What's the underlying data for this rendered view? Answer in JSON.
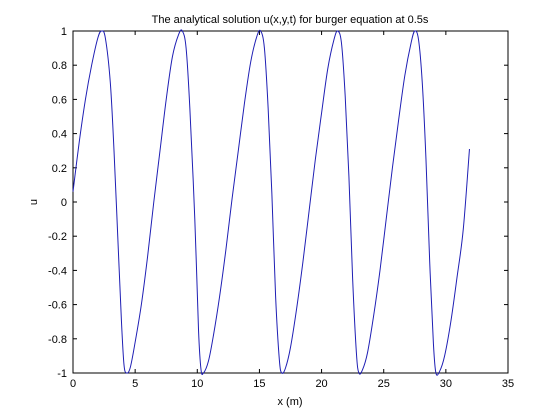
{
  "chart_data": {
    "type": "line",
    "title": "The analytical solution u(x,y,t) for burger equation at 0.5s",
    "xlabel": "x (m)",
    "ylabel": "u",
    "xlim": [
      0,
      35
    ],
    "ylim": [
      -1,
      1
    ],
    "xticks": [
      0,
      5,
      10,
      15,
      20,
      25,
      30,
      35
    ],
    "yticks": [
      -1,
      -0.8,
      -0.6,
      -0.4,
      -0.2,
      0,
      0.2,
      0.4,
      0.6,
      0.8,
      1
    ],
    "xtick_labels": [
      "0",
      "5",
      "10",
      "15",
      "20",
      "25",
      "30",
      "35"
    ],
    "ytick_labels": [
      "-1",
      "-0.8",
      "-0.6",
      "-0.4",
      "-0.2",
      "0",
      "0.2",
      "0.4",
      "0.6",
      "0.8",
      "1"
    ],
    "grid": false,
    "line_color": "#1f1fb4",
    "series": [
      {
        "x": [
          0,
          0.5,
          1.0,
          1.5,
          2.0,
          2.3,
          2.6,
          3.0,
          3.3,
          3.6,
          3.9,
          4.1,
          4.3,
          4.6,
          5.0,
          5.5,
          6.0,
          6.5,
          7.0,
          7.5,
          8.0,
          8.5,
          8.8,
          9.1,
          9.4,
          9.8,
          10.1,
          10.3,
          10.5,
          10.9,
          11.3,
          11.8,
          12.3,
          12.8,
          13.3,
          13.8,
          14.3,
          14.8,
          15.1,
          15.4,
          15.7,
          16.0,
          16.3,
          16.6,
          16.8,
          17.1,
          17.5,
          18.0,
          18.5,
          19.0,
          19.5,
          20.0,
          20.5,
          21.0,
          21.3,
          21.6,
          21.9,
          22.2,
          22.5,
          22.8,
          23.0,
          23.3,
          23.7,
          24.2,
          24.7,
          25.2,
          25.7,
          26.2,
          26.7,
          27.2,
          27.5,
          27.8,
          28.1,
          28.4,
          28.7,
          29.0,
          29.2,
          29.5,
          29.9,
          30.4,
          30.9,
          31.4,
          31.9
        ],
        "y": [
          0.06,
          0.35,
          0.6,
          0.8,
          0.96,
          1.0,
          0.96,
          0.7,
          0.3,
          -0.2,
          -0.7,
          -0.95,
          -1.0,
          -0.97,
          -0.82,
          -0.6,
          -0.32,
          0.0,
          0.3,
          0.6,
          0.85,
          0.98,
          1.0,
          0.9,
          0.55,
          -0.1,
          -0.75,
          -0.98,
          -1.0,
          -0.93,
          -0.78,
          -0.55,
          -0.28,
          0.02,
          0.3,
          0.58,
          0.82,
          0.97,
          1.0,
          0.9,
          0.55,
          0.05,
          -0.55,
          -0.92,
          -1.0,
          -0.97,
          -0.85,
          -0.62,
          -0.35,
          -0.05,
          0.25,
          0.52,
          0.78,
          0.95,
          1.0,
          0.93,
          0.62,
          0.15,
          -0.45,
          -0.88,
          -1.0,
          -0.98,
          -0.88,
          -0.66,
          -0.4,
          -0.1,
          0.2,
          0.48,
          0.74,
          0.93,
          1.0,
          0.95,
          0.7,
          0.25,
          -0.35,
          -0.83,
          -1.0,
          -0.99,
          -0.9,
          -0.7,
          -0.44,
          -0.16,
          0.31
        ]
      }
    ]
  }
}
